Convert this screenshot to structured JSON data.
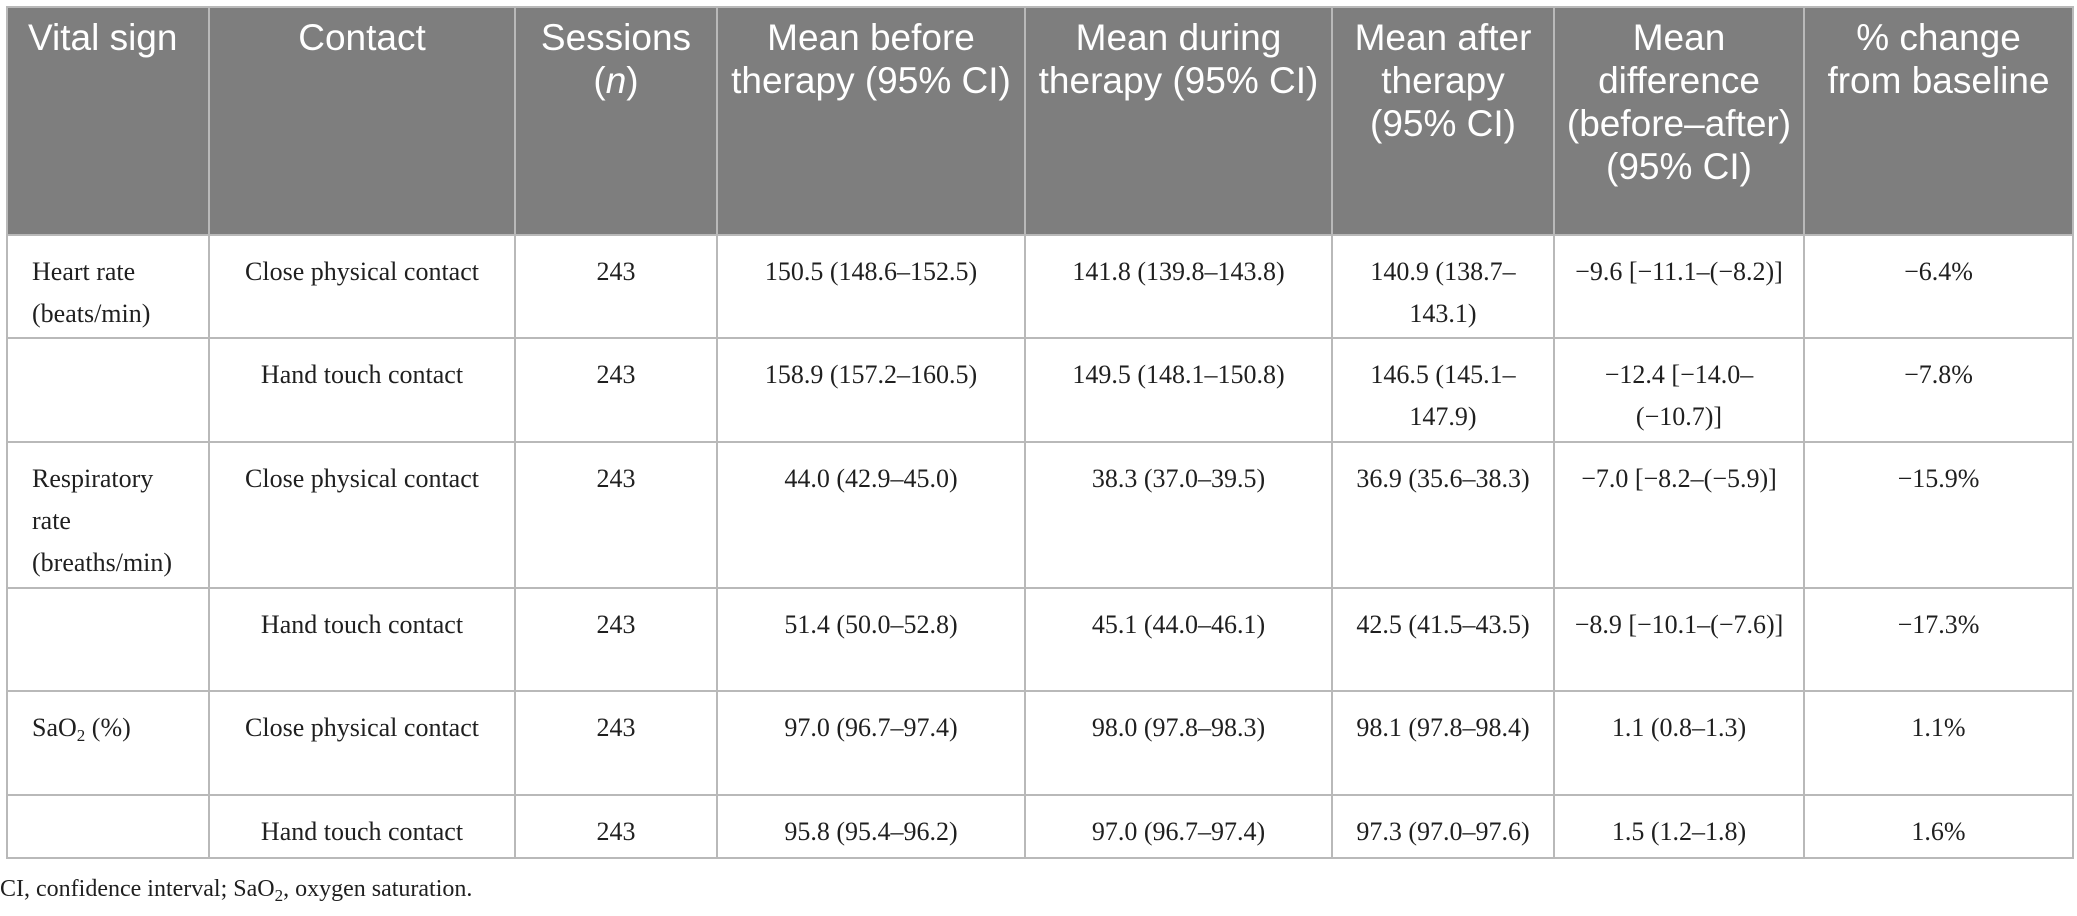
{
  "table": {
    "headers": {
      "vital_sign": "Vital sign",
      "contact": "Contact",
      "sessions_a": "Sessions (",
      "sessions_n": "n",
      "sessions_b": ")",
      "mean_before": "Mean before therapy (95% CI)",
      "mean_during": "Mean during therapy (95% CI)",
      "mean_after": "Mean after therapy (95% CI)",
      "mean_difference": "Mean difference (before–after) (95% CI)",
      "pct_change": "% change from baseline"
    },
    "rows": [
      {
        "vital_sign": "Heart rate (beats/min)",
        "contact": "Close physical contact",
        "sessions": "243",
        "before": "150.5 (148.6–152.5)",
        "during": "141.8 (139.8–143.8)",
        "after": "140.9 (138.7–143.1)",
        "difference": "−9.6 [−11.1–(−8.2)]",
        "pct_change": "−6.4%"
      },
      {
        "vital_sign": "",
        "contact": "Hand touch contact",
        "sessions": "243",
        "before": "158.9 (157.2–160.5)",
        "during": "149.5 (148.1–150.8)",
        "after": "146.5 (145.1–147.9)",
        "difference": "−12.4 [−14.0–(−10.7)]",
        "pct_change": "−7.8%"
      },
      {
        "vital_sign": "Respiratory rate (breaths/min)",
        "contact": "Close physical contact",
        "sessions": "243",
        "before": "44.0 (42.9–45.0)",
        "during": "38.3 (37.0–39.5)",
        "after": "36.9 (35.6–38.3)",
        "difference": "−7.0 [−8.2–(−5.9)]",
        "pct_change": "−15.9%"
      },
      {
        "vital_sign": "",
        "contact": "Hand touch contact",
        "sessions": "243",
        "before": "51.4 (50.0–52.8)",
        "during": "45.1 (44.0–46.1)",
        "after": "42.5 (41.5–43.5)",
        "difference": "−8.9 [−10.1–(−7.6)]",
        "pct_change": "−17.3%"
      },
      {
        "vital_sign": "",
        "contact": "Close physical contact",
        "sessions": "243",
        "before": "97.0 (96.7–97.4)",
        "during": "98.0 (97.8–98.3)",
        "after": "98.1 (97.8–98.4)",
        "difference": "1.1 (0.8–1.3)",
        "pct_change": "1.1%"
      },
      {
        "vital_sign": "",
        "contact": "Hand touch contact",
        "sessions": "243",
        "before": "95.8 (95.4–96.2)",
        "during": "97.0 (96.7–97.4)",
        "after": "97.3 (97.0–97.6)",
        "difference": "1.5 (1.2–1.8)",
        "pct_change": "1.6%"
      }
    ],
    "sao2_label": {
      "base": "SaO",
      "sub": "2",
      "rest": " (%)"
    }
  },
  "footnote": {
    "part1": "CI, confidence interval; SaO",
    "sub": "2",
    "part2": ", oxygen saturation."
  }
}
